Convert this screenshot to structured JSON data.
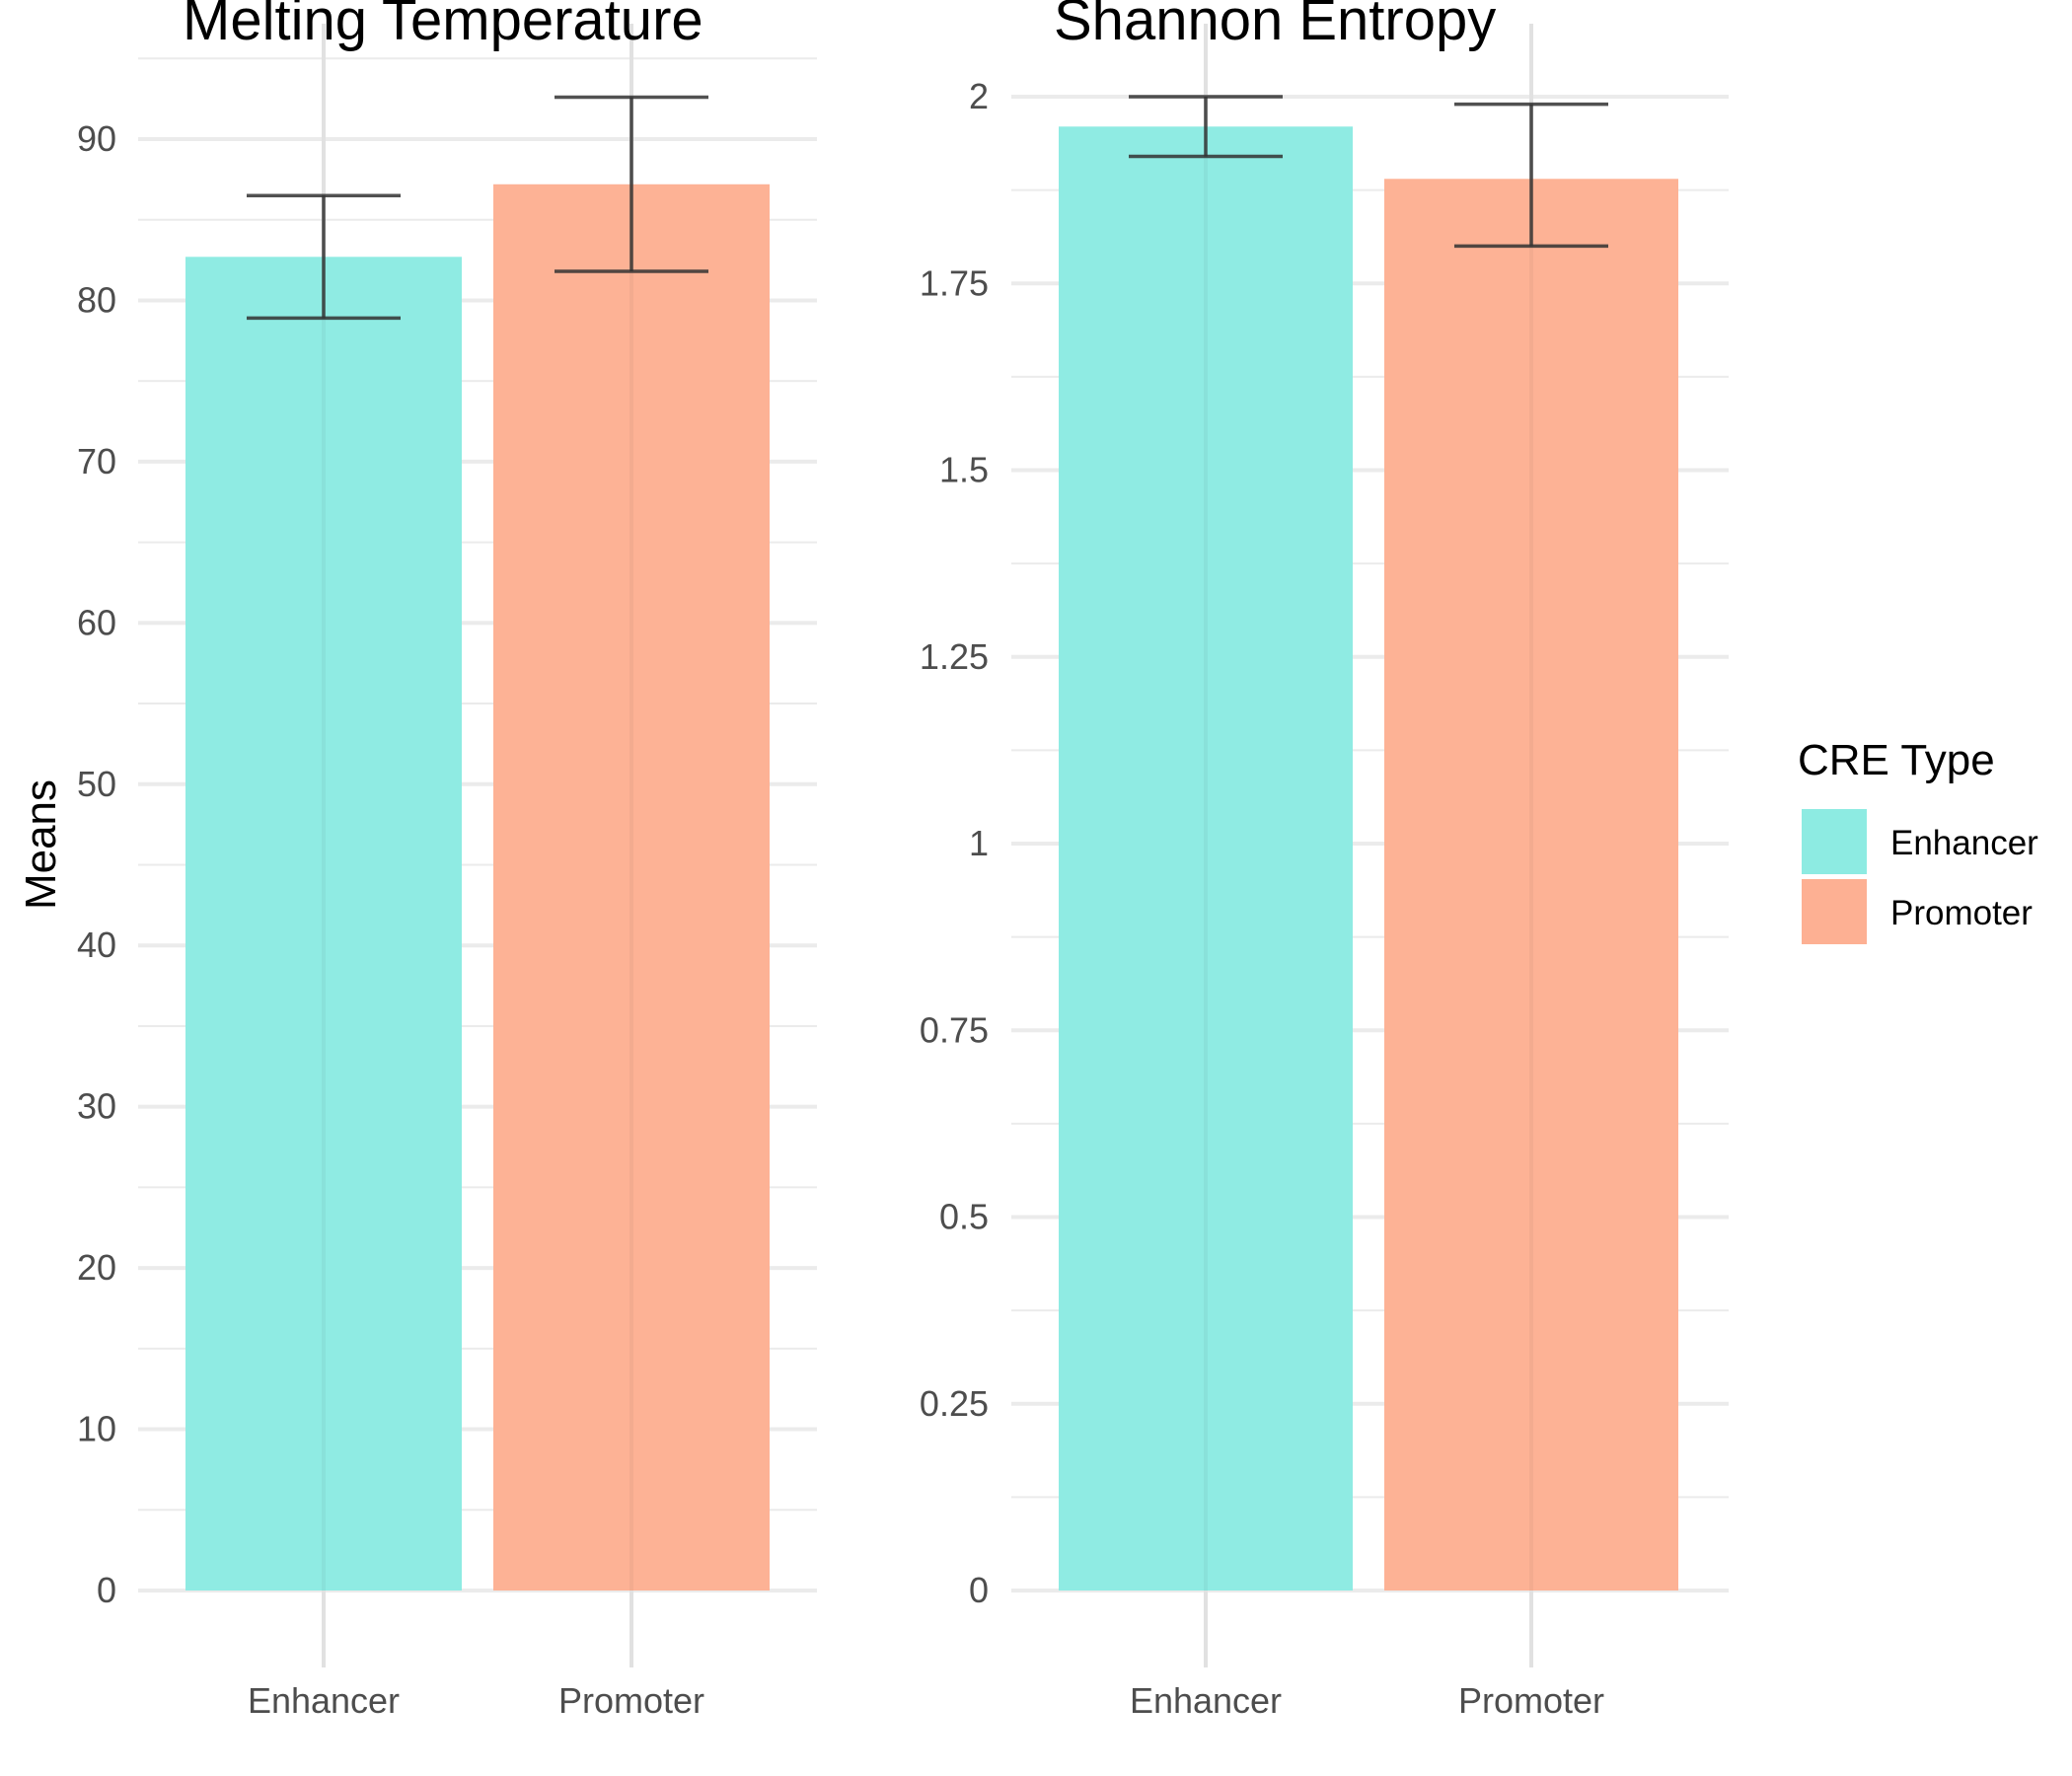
{
  "colors": {
    "Enhancer": "#8debe2",
    "Promoter": "#fdb093"
  },
  "chart_data": [
    {
      "type": "bar",
      "title": "Melting Temperature",
      "ylabel": "Means",
      "categories": [
        "Enhancer",
        "Promoter"
      ],
      "values": [
        82.7,
        87.2
      ],
      "errors": [
        [
          78.9,
          86.5
        ],
        [
          81.8,
          92.6
        ]
      ],
      "ylim": [
        0,
        95
      ],
      "yticks": [
        0,
        10,
        20,
        30,
        40,
        50,
        60,
        70,
        80,
        90
      ],
      "ytick_labels": [
        "0",
        "10",
        "20",
        "30",
        "40",
        "50",
        "60",
        "70",
        "80",
        "90"
      ],
      "grid": true
    },
    {
      "type": "bar",
      "title": "Shannon Entropy",
      "ylabel": "",
      "categories": [
        "Enhancer",
        "Promoter"
      ],
      "values": [
        1.96,
        1.89
      ],
      "errors": [
        [
          1.92,
          2.0
        ],
        [
          1.8,
          1.99
        ]
      ],
      "ylim": [
        0,
        2.0
      ],
      "yticks": [
        0,
        0.25,
        0.5,
        0.75,
        1,
        1.25,
        1.5,
        1.75,
        2
      ],
      "ytick_labels": [
        "0",
        "0.25",
        "0.5",
        "0.75",
        "1",
        "1.25",
        "1.5",
        "1.75",
        "2"
      ],
      "grid": true
    }
  ],
  "legend": {
    "title": "CRE Type",
    "position": "right",
    "items": [
      "Enhancer",
      "Promoter"
    ]
  }
}
